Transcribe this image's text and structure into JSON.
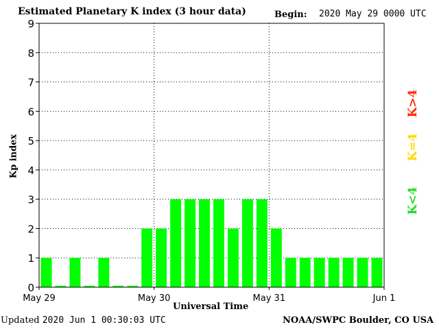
{
  "header": {
    "title": "Estimated Planetary K index (3 hour data)",
    "begin_label": "Begin:",
    "begin_value": "2020 May 29 0000 UTC"
  },
  "footer": {
    "updated_label": "Updated",
    "updated_value": "2020 Jun  1 00:30:03 UTC",
    "credit": "NOAA/SWPC Boulder, CO USA"
  },
  "legend": [
    {
      "text": "K>4",
      "color": "#ff2a00"
    },
    {
      "text": "K=4",
      "color": "#ffd800"
    },
    {
      "text": "K<4",
      "color": "#22dd22"
    }
  ],
  "colors": {
    "bar": "#00ff00",
    "grid": "#000000",
    "background": "#ffffff"
  },
  "chart_data": {
    "type": "bar",
    "title": "Estimated Planetary K index (3 hour data)",
    "xlabel": "Universal Time",
    "ylabel": "Kp index",
    "ylim": [
      0,
      9
    ],
    "yticks": [
      0,
      1,
      2,
      3,
      4,
      5,
      6,
      7,
      8,
      9
    ],
    "xlim": [
      0,
      24
    ],
    "xticks": [
      {
        "pos": 0,
        "label": "May 29"
      },
      {
        "pos": 8,
        "label": "May 30"
      },
      {
        "pos": 16,
        "label": "May 31"
      },
      {
        "pos": 24,
        "label": "Jun 1"
      }
    ],
    "grid": true,
    "values": [
      1,
      0.05,
      1,
      0.05,
      1,
      0.05,
      0.05,
      2,
      2,
      3,
      3,
      3,
      3,
      2,
      3,
      3,
      2,
      1,
      1,
      1,
      1,
      1,
      1,
      1
    ]
  }
}
